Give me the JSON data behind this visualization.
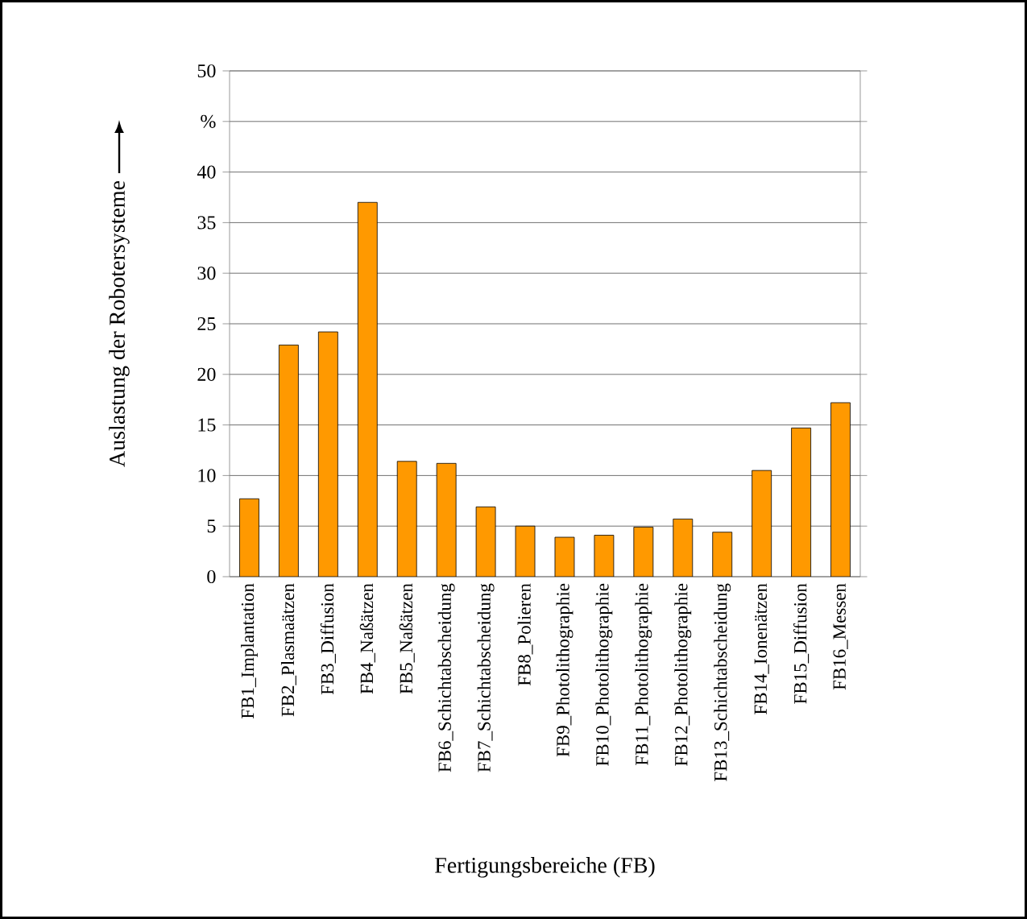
{
  "chart_data": {
    "type": "bar",
    "xlabel": "Fertigungsbereiche (FB)",
    "ylabel": "Auslastung der Robotersysteme",
    "categories": [
      "FB1_Implantation",
      "FB2_Plasmaätzen",
      "FB3_Diffusion",
      "FB4_Naßätzen",
      "FB5_Naßätzen",
      "FB6_Schichtabscheidung",
      "FB7_Schichtabscheidung",
      "FB8_Polieren",
      "FB9_Photolithographie",
      "FB10_Photolithographie",
      "FB11_Photolithographie",
      "FB12_Photolithographie",
      "FB13_Schichtabscheidung",
      "FB14_Ionenätzen",
      "FB15_Diffusion",
      "FB16_Messen"
    ],
    "values": [
      7.7,
      22.9,
      24.2,
      37.0,
      11.4,
      11.2,
      6.9,
      5.0,
      3.9,
      4.1,
      4.9,
      5.7,
      4.4,
      10.5,
      14.7,
      17.2
    ],
    "color": "#ff9900",
    "ylim": [
      0,
      50
    ],
    "yticks": [
      0,
      5,
      10,
      15,
      20,
      25,
      30,
      35,
      40,
      {
        "value": 45,
        "label": "%"
      },
      50
    ],
    "grid": "y"
  }
}
